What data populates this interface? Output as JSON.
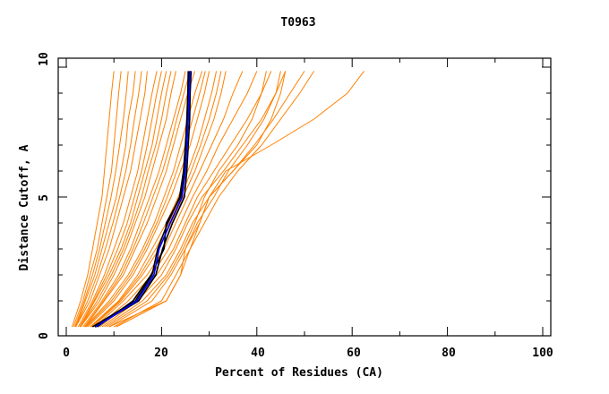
{
  "chart_data": {
    "type": "line",
    "title": "T0963",
    "xlabel": "Percent of Residues (CA)",
    "ylabel": "Distance Cutoff, A",
    "xlim": [
      -1.7,
      101.7
    ],
    "ylim": [
      -0.35,
      10.35
    ],
    "x_ticks": [
      0,
      20,
      40,
      60,
      80,
      100
    ],
    "y_ticks": [
      0,
      5,
      10
    ],
    "x_tick_labels": [
      "0",
      "20",
      "40",
      "60",
      "80",
      "100"
    ],
    "y_tick_labels": [
      "0",
      "5",
      "10"
    ],
    "grid": false,
    "colors": {
      "models": "#ff8000",
      "group": "#000000",
      "highlight": "#0000ff"
    },
    "y": [
      0,
      1,
      2,
      3,
      4,
      5,
      6,
      7,
      8,
      9,
      9.85
    ],
    "model_series": [
      [
        1.2,
        3,
        4.5,
        5.5,
        6.5,
        7.5,
        8,
        8.5,
        9,
        9.5,
        10
      ],
      [
        1.5,
        3.5,
        5,
        6.5,
        7.5,
        8.5,
        9.5,
        10,
        10.5,
        11,
        11.5
      ],
      [
        1.8,
        3.8,
        5.5,
        7,
        8.2,
        9.4,
        10.4,
        11.2,
        12,
        12.6,
        13
      ],
      [
        2,
        4,
        6,
        7.5,
        9,
        10.5,
        11.5,
        12.5,
        13,
        14,
        14.5
      ],
      [
        2,
        4.5,
        6.5,
        8.2,
        9.8,
        11.2,
        12.5,
        13.5,
        14.3,
        15.2,
        15.8
      ],
      [
        2,
        5,
        7,
        9,
        10.5,
        12,
        13.5,
        14.5,
        15.5,
        16.5,
        17
      ],
      [
        2.5,
        5.5,
        8,
        10,
        12,
        13.5,
        15,
        16,
        17,
        18,
        19
      ],
      [
        2.8,
        5.8,
        8.5,
        10.8,
        12.8,
        14.3,
        15.8,
        17,
        18,
        19,
        20
      ],
      [
        3,
        6,
        9,
        11.5,
        13.5,
        15,
        16.5,
        18,
        19,
        20,
        21
      ],
      [
        3,
        6.5,
        9.5,
        12,
        14,
        15.8,
        17.2,
        18.8,
        20,
        21,
        22
      ],
      [
        3,
        7,
        10,
        12.5,
        14.5,
        16.5,
        18,
        19.5,
        21,
        22,
        23
      ],
      [
        3.5,
        7.5,
        11,
        13.5,
        15.5,
        17.5,
        19.5,
        21,
        22.5,
        24,
        25
      ],
      [
        3.8,
        7.8,
        11.5,
        14,
        16.2,
        18.2,
        20.2,
        21.8,
        23.2,
        24.7,
        26
      ],
      [
        4,
        8,
        12,
        14.5,
        17,
        19,
        21,
        22.5,
        24,
        25.5,
        27
      ],
      [
        4,
        9,
        13,
        16,
        18.5,
        20.5,
        22.5,
        24,
        25.5,
        27,
        28.5
      ],
      [
        4.2,
        9.5,
        13.5,
        16.5,
        19,
        21.2,
        23.2,
        25,
        26.5,
        28,
        29.2
      ],
      [
        4.5,
        10,
        14,
        17,
        19.5,
        22,
        24,
        26,
        27.5,
        29,
        30
      ],
      [
        5,
        11,
        15,
        18,
        21,
        23.5,
        25.5,
        27.5,
        29,
        30.5,
        31.5
      ],
      [
        5.2,
        11.2,
        15.5,
        18.8,
        21.5,
        24,
        26.2,
        28.2,
        30,
        31.5,
        32.5
      ],
      [
        5.5,
        11.5,
        16,
        19.5,
        22,
        24.5,
        27,
        29,
        31,
        32.5,
        33.5
      ],
      [
        6,
        12,
        17,
        20.5,
        23,
        25.5,
        28,
        30.5,
        33,
        35,
        37
      ],
      [
        6.5,
        13,
        18,
        21.5,
        24,
        26.5,
        29.5,
        32,
        35,
        38,
        40
      ],
      [
        7,
        14,
        19,
        22.5,
        25,
        27.5,
        31,
        34.5,
        38,
        41,
        43
      ],
      [
        7.5,
        15,
        20,
        23,
        25.5,
        28.5,
        33,
        37,
        41,
        44,
        46
      ],
      [
        8,
        16,
        21,
        24,
        26.5,
        30,
        35,
        39.5,
        43.5,
        47,
        50
      ],
      [
        8.5,
        17,
        21.5,
        24.5,
        27,
        29,
        32,
        36,
        39,
        41,
        42
      ],
      [
        9,
        18,
        22,
        25,
        27.5,
        31,
        34,
        38,
        41.5,
        44,
        45
      ],
      [
        10,
        20,
        23,
        26,
        29,
        32,
        36,
        41,
        45,
        49,
        52
      ],
      [
        10.5,
        21,
        24,
        26,
        28,
        30,
        35,
        40,
        43,
        45,
        46
      ],
      [
        9,
        21,
        24,
        25,
        28,
        30,
        33.5,
        43,
        52,
        59,
        62.5
      ]
    ],
    "group_series": [
      [
        5.5,
        14.5,
        18,
        19.2,
        21.3,
        23.8,
        24.6,
        25,
        25.3,
        25.5,
        25.6
      ],
      [
        6,
        15.2,
        18.8,
        20.2,
        22.3,
        24.8,
        25.3,
        25.6,
        25.9,
        26,
        26.2
      ],
      [
        6.5,
        14,
        17.8,
        20.5,
        21,
        24,
        24.8,
        25.2,
        25.5,
        25.7,
        25.9
      ]
    ],
    "highlight_series": [
      6.2,
      14.8,
      18.4,
      19.5,
      21.8,
      24.3,
      25,
      25.3,
      25.6,
      25.8,
      26
    ]
  }
}
